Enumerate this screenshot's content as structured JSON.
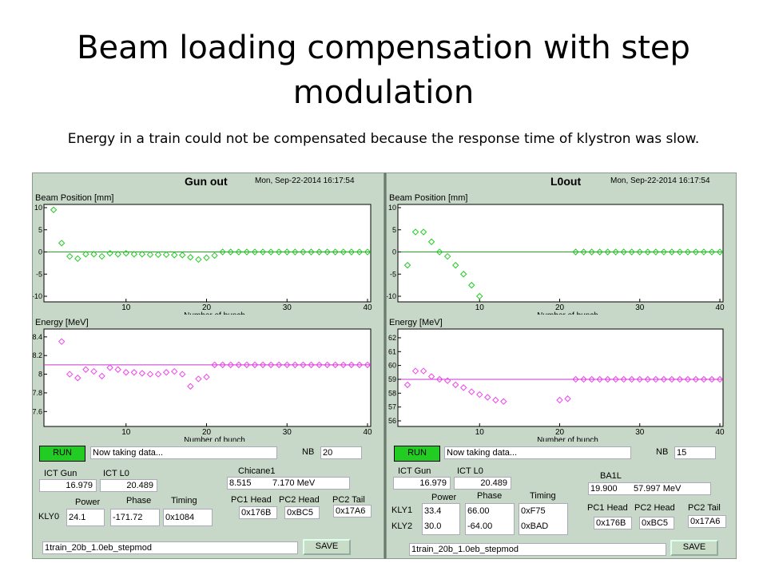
{
  "slide": {
    "title": "Beam loading compensation with step modulation",
    "subtitle": "Energy in a train could not be compensated because the response time of klystron was slow."
  },
  "panels": [
    {
      "title": "Gun out",
      "date": "Mon, Sep-22-2014   16:17:54",
      "run_label": "RUN",
      "status": "Now taking data...",
      "nb_label": "NB",
      "nb_value": "20",
      "section_label": "Chicane1",
      "section_value": "8.515",
      "section_mev": "7.170 MeV",
      "ict_gun_label": "ICT Gun",
      "ict_gun_value": "16.979",
      "ict_l0_label": "ICT L0",
      "ict_l0_value": "20.489",
      "power_label": "Power",
      "phase_label": "Phase",
      "timing_label": "Timing",
      "kly_rows": [
        {
          "label": "KLY0",
          "power": "24.1",
          "phase": "-171.72",
          "timing": "0x1084"
        }
      ],
      "pc_labels": [
        "PC1 Head",
        "PC2 Head",
        "PC2 Tail"
      ],
      "pc_values": [
        "0x176B",
        "0xBC5",
        "0x17A6"
      ],
      "file": "1train_20b_1.0eb_stepmod",
      "save_label": "SAVE"
    },
    {
      "title": "L0out",
      "date": "Mon, Sep-22-2014   16:17:54",
      "run_label": "RUN",
      "status": "Now taking data...",
      "nb_label": "NB",
      "nb_value": "15",
      "section_label": "BA1L",
      "section_value": "19.900",
      "section_mev": "57.997 MeV",
      "ict_gun_label": "ICT Gun",
      "ict_gun_value": "16.979",
      "ict_l0_label": "ICT L0",
      "ict_l0_value": "20.489",
      "power_label": "Power",
      "phase_label": "Phase",
      "timing_label": "Timing",
      "kly_rows": [
        {
          "label": "KLY1",
          "power": "33.4",
          "phase": "66.00",
          "timing": "0xF75"
        },
        {
          "label": "KLY2",
          "power": "30.0",
          "phase": "-64.00",
          "timing": "0xBAD"
        }
      ],
      "pc_labels": [
        "PC1 Head",
        "PC2 Head",
        "PC2 Tail"
      ],
      "pc_values": [
        "0x176B",
        "0xBC5",
        "0x17A6"
      ],
      "file": "1train_20b_1.0eb_stepmod",
      "save_label": "SAVE"
    }
  ],
  "chart_data": [
    {
      "id": "gun-position",
      "type": "scatter",
      "ylabel": "Beam Position [mm]",
      "xlabel": "Number of bunch",
      "xlim": [
        0,
        40
      ],
      "ylim": [
        -10,
        10
      ],
      "xticks": [
        10,
        20,
        30,
        40
      ],
      "yticks": [
        10,
        5,
        0,
        -5,
        -10
      ],
      "marker_color": "#22cc22",
      "line_color": "#22aa22",
      "line_y": 0,
      "x": [
        1,
        2,
        3,
        4,
        5,
        6,
        7,
        8,
        9,
        10,
        11,
        12,
        13,
        14,
        15,
        16,
        17,
        18,
        19,
        20,
        21,
        22,
        23,
        24,
        25,
        26,
        27,
        28,
        29,
        30,
        31,
        32,
        33,
        34,
        35,
        36,
        37,
        38,
        39,
        40
      ],
      "values": [
        9.5,
        2,
        -1,
        -1.5,
        -0.5,
        -0.5,
        -1,
        -0.3,
        -0.5,
        -0.3,
        -0.5,
        -0.5,
        -0.6,
        -0.6,
        -0.6,
        -0.7,
        -0.7,
        -1.2,
        -1.7,
        -1.3,
        -0.8,
        0,
        0,
        0,
        0,
        0,
        0,
        0,
        0,
        0,
        0,
        0,
        0,
        0,
        0,
        0,
        0,
        0,
        0,
        0
      ]
    },
    {
      "id": "gun-energy",
      "type": "scatter",
      "ylabel": "Energy [MeV]",
      "xlabel": "Number of bunch",
      "xlim": [
        0,
        40
      ],
      "ylim": [
        7.5,
        8.45
      ],
      "xticks": [
        10,
        20,
        30,
        40
      ],
      "yticks": [
        8.4,
        8.2,
        8,
        7.8,
        7.6
      ],
      "marker_color": "#ee44ee",
      "line_color": "#cc33cc",
      "line_y": 8.1,
      "x": [
        2,
        3,
        4,
        5,
        6,
        7,
        8,
        9,
        10,
        11,
        12,
        13,
        14,
        15,
        16,
        17,
        18,
        19,
        20,
        21,
        22,
        23,
        24,
        25,
        26,
        27,
        28,
        29,
        30,
        31,
        32,
        33,
        34,
        35,
        36,
        37,
        38,
        39,
        40
      ],
      "values": [
        8.35,
        8.0,
        7.96,
        8.05,
        8.03,
        7.98,
        8.07,
        8.05,
        8.02,
        8.02,
        8.01,
        8.0,
        8.0,
        8.02,
        8.03,
        8.0,
        7.87,
        7.95,
        7.97,
        8.1,
        8.1,
        8.1,
        8.1,
        8.1,
        8.1,
        8.1,
        8.1,
        8.1,
        8.1,
        8.1,
        8.1,
        8.1,
        8.1,
        8.1,
        8.1,
        8.1,
        8.1,
        8.1,
        8.1
      ]
    },
    {
      "id": "l0-position",
      "type": "scatter",
      "ylabel": "Beam Position [mm]",
      "xlabel": "Number of bunch",
      "xlim": [
        0,
        40
      ],
      "ylim": [
        -10,
        10
      ],
      "xticks": [
        10,
        20,
        30,
        40
      ],
      "yticks": [
        10,
        5,
        0,
        -5,
        -10
      ],
      "marker_color": "#22cc22",
      "line_color": "#22aa22",
      "line_y": 0,
      "x": [
        1,
        2,
        3,
        4,
        5,
        6,
        7,
        8,
        9,
        10,
        22,
        23,
        24,
        25,
        26,
        27,
        28,
        29,
        30,
        31,
        32,
        33,
        34,
        35,
        36,
        37,
        38,
        39,
        40
      ],
      "values": [
        -3,
        4.5,
        4.5,
        2.3,
        0,
        -1,
        -3,
        -5,
        -7.5,
        -10,
        0,
        0,
        0,
        0,
        0,
        0,
        0,
        0,
        0,
        0,
        0,
        0,
        0,
        0,
        0,
        0,
        0,
        0,
        0
      ]
    },
    {
      "id": "l0-energy",
      "type": "scatter",
      "ylabel": "Energy [MeV]",
      "xlabel": "Number of bunch",
      "xlim": [
        0,
        40
      ],
      "ylim": [
        56,
        62.4
      ],
      "xticks": [
        10,
        20,
        30,
        40
      ],
      "yticks": [
        62,
        61,
        60,
        59,
        58,
        57,
        56
      ],
      "marker_color": "#ee44ee",
      "line_color": "#cc33cc",
      "line_y": 59,
      "x": [
        1,
        2,
        3,
        4,
        5,
        6,
        7,
        8,
        9,
        10,
        11,
        12,
        13,
        20,
        21,
        22,
        23,
        24,
        25,
        26,
        27,
        28,
        29,
        30,
        31,
        32,
        33,
        34,
        35,
        36,
        37,
        38,
        39,
        40
      ],
      "values": [
        58.6,
        59.6,
        59.6,
        59.2,
        59.0,
        58.9,
        58.6,
        58.4,
        58.1,
        57.9,
        57.7,
        57.5,
        57.4,
        57.5,
        57.6,
        59,
        59,
        59,
        59,
        59,
        59,
        59,
        59,
        59,
        59,
        59,
        59,
        59,
        59,
        59,
        59,
        59,
        59,
        59
      ]
    }
  ]
}
